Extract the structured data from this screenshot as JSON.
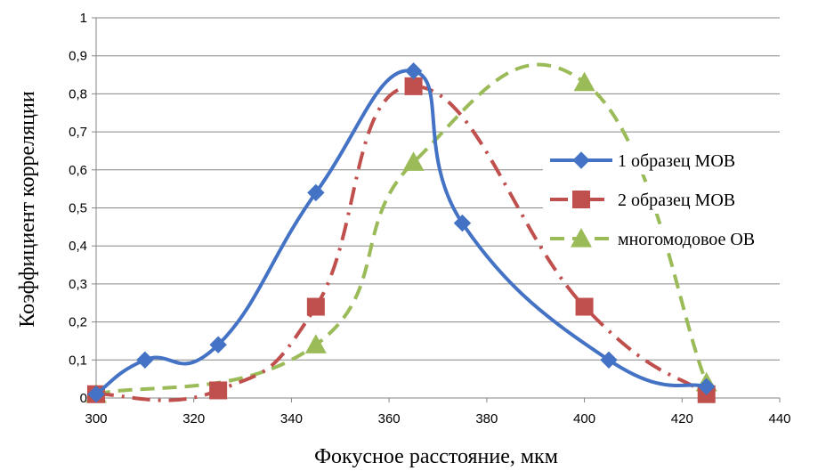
{
  "chart_data": {
    "type": "line",
    "xlabel": "Фокусное расстояние, мкм",
    "ylabel": "Коэффициент корреляции",
    "xlim": [
      300,
      440
    ],
    "ylim": [
      0,
      1
    ],
    "x_ticks": [
      300,
      320,
      340,
      360,
      380,
      400,
      420,
      440
    ],
    "y_ticks": [
      0,
      0.1,
      0.2,
      0.3,
      0.4,
      0.5,
      0.6,
      0.7,
      0.8,
      0.9,
      1
    ],
    "y_tick_labels": [
      "0",
      "0,1",
      "0,2",
      "0,3",
      "0,4",
      "0,5",
      "0,6",
      "0,7",
      "0,8",
      "0,9",
      "1"
    ],
    "grid": "horizontal",
    "legend_position": "right",
    "series": [
      {
        "name": "1 образец МОВ",
        "color": "#4472C4",
        "marker": "diamond",
        "line_style": "solid",
        "x": [
          300,
          310,
          325,
          345,
          365,
          375,
          405,
          425
        ],
        "y": [
          0.01,
          0.1,
          0.14,
          0.54,
          0.86,
          0.46,
          0.1,
          0.03
        ]
      },
      {
        "name": "2 образец МОВ",
        "color": "#C0504D",
        "marker": "square",
        "line_style": "dash-dot",
        "x": [
          300,
          325,
          345,
          365,
          400,
          425
        ],
        "y": [
          0.01,
          0.02,
          0.24,
          0.82,
          0.24,
          0.01
        ]
      },
      {
        "name": "многомодовое ОВ",
        "color": "#9BBB59",
        "marker": "triangle",
        "line_style": "dash",
        "x": [
          300,
          345,
          365,
          400,
          425
        ],
        "y": [
          0.01,
          0.14,
          0.62,
          0.83,
          0.04
        ]
      }
    ]
  }
}
